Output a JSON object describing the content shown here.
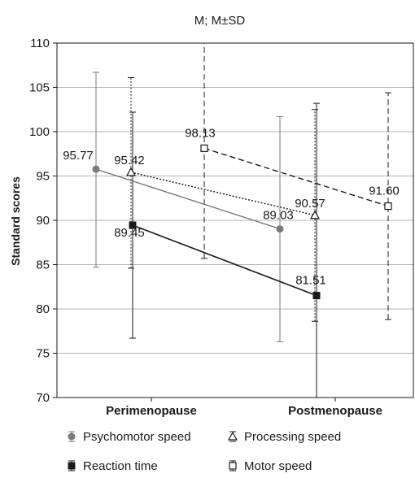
{
  "chart_data": {
    "type": "line",
    "title": "M; M±SD",
    "ylabel": "Standard scores",
    "xlabel": "",
    "categories": [
      "Perimenopause",
      "Postmenopause"
    ],
    "ylim": [
      70,
      110
    ],
    "yticks": [
      70,
      75,
      80,
      85,
      90,
      95,
      100,
      105,
      110
    ],
    "grid": "horizontal",
    "legend_position": "bottom",
    "series": [
      {
        "name": "Psychomotor speed",
        "values": [
          95.77,
          89.03
        ],
        "labels": [
          "95.77",
          "89.03"
        ],
        "sd_low": [
          84.7,
          76.3
        ],
        "sd_high": [
          106.7,
          101.7
        ],
        "color": "#7a7a7a",
        "marker": "circle",
        "line": "solid"
      },
      {
        "name": "Processing speed",
        "values": [
          95.42,
          90.57
        ],
        "labels": [
          "95.42",
          "90.57"
        ],
        "sd_low": [
          84.6,
          78.6
        ],
        "sd_high": [
          106.1,
          102.5
        ],
        "color": "#1a1a1a",
        "marker": "triangle-open",
        "line": "dotted"
      },
      {
        "name": "Reaction time",
        "values": [
          89.45,
          81.51
        ],
        "labels": [
          "89.45",
          "81.51"
        ],
        "sd_low": [
          76.7,
          70.0
        ],
        "sd_high": [
          102.2,
          103.2
        ],
        "color": "#1a1a1a",
        "marker": "square",
        "line": "solid"
      },
      {
        "name": "Motor speed",
        "values": [
          98.13,
          91.6
        ],
        "labels": [
          "98.13",
          "91.60"
        ],
        "sd_low": [
          85.7,
          78.8
        ],
        "sd_high": [
          110.0,
          104.4
        ],
        "color": "#1a1a1a",
        "marker": "square-open",
        "line": "dashed"
      }
    ]
  }
}
